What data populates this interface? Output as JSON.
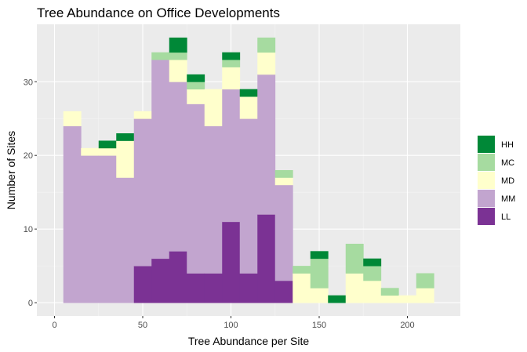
{
  "chart_data": {
    "type": "bar",
    "stacked": true,
    "title": "Tree Abundance on Office Developments",
    "xlabel": "Tree Abundance per Site",
    "ylabel": "Number of Sites",
    "xlim": [
      -10,
      230
    ],
    "ylim": [
      -1.8,
      37.8
    ],
    "x_ticks": [
      0,
      50,
      100,
      150,
      200
    ],
    "y_ticks": [
      0,
      10,
      20,
      30
    ],
    "bin_width": 10,
    "bin_starts": [
      5,
      15,
      25,
      35,
      45,
      55,
      65,
      75,
      85,
      95,
      105,
      115,
      125,
      135,
      145,
      155,
      165,
      175,
      185,
      195,
      205
    ],
    "legend_position": "right",
    "grid": true,
    "series": [
      {
        "name": "LL",
        "color": "#7b3294",
        "values": [
          0,
          0,
          0,
          0,
          5,
          6,
          7,
          4,
          4,
          11,
          4,
          12,
          3,
          0,
          0,
          0,
          0,
          0,
          0,
          0,
          0
        ]
      },
      {
        "name": "MM",
        "color": "#c2a5cf",
        "values": [
          24,
          20,
          20,
          17,
          20,
          27,
          23,
          23,
          20,
          18,
          21,
          19,
          13,
          0,
          0,
          0,
          0,
          0,
          0,
          0,
          0
        ]
      },
      {
        "name": "MD",
        "color": "#ffffcc",
        "values": [
          2,
          1,
          1,
          5,
          1,
          0,
          3,
          2,
          5,
          3,
          3,
          3,
          1,
          4,
          2,
          0,
          4,
          3,
          1,
          1,
          2
        ]
      },
      {
        "name": "MC",
        "color": "#a6dba0",
        "values": [
          0,
          0,
          0,
          0,
          0,
          1,
          1,
          1,
          0,
          1,
          0,
          2,
          1,
          1,
          4,
          0,
          4,
          2,
          1,
          0,
          2
        ]
      },
      {
        "name": "HH",
        "color": "#008837",
        "values": [
          0,
          0,
          1,
          1,
          0,
          0,
          2,
          1,
          0,
          1,
          1,
          0,
          0,
          0,
          1,
          1,
          0,
          1,
          0,
          0,
          0
        ]
      }
    ]
  }
}
